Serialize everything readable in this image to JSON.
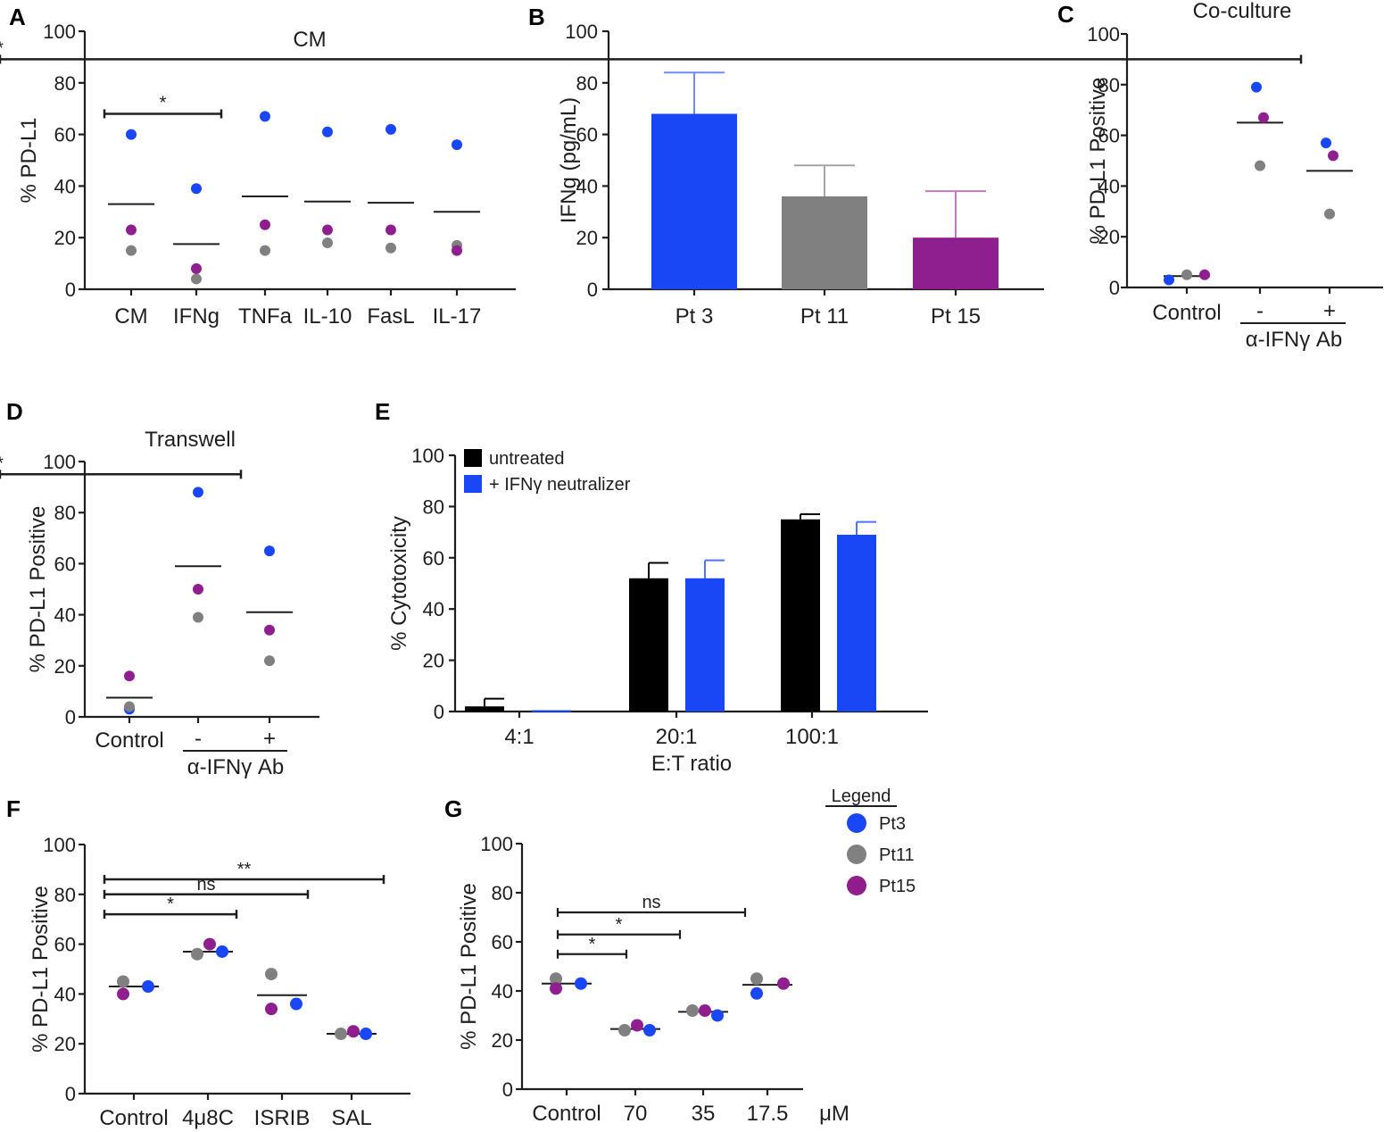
{
  "colors": {
    "pt3": "#1a47f5",
    "pt11": "#808080",
    "pt15": "#8f1e8f",
    "black": "#000000"
  },
  "legend": {
    "title": "Legend",
    "entries": [
      {
        "label": "Pt3",
        "color": "#1a47f5"
      },
      {
        "label": "Pt11",
        "color": "#808080"
      },
      {
        "label": "Pt15",
        "color": "#8f1e8f"
      }
    ]
  },
  "chart_data": [
    {
      "panel": "A",
      "type": "scatter",
      "title": "CM",
      "xlabel": "",
      "ylabel": "% PD-L1",
      "ylim": [
        0,
        100
      ],
      "yticks": [
        "0",
        "20",
        "40",
        "60",
        "80",
        "100"
      ],
      "categories": [
        "CM",
        "IFNg",
        "TNFa",
        "IL-10",
        "FasL",
        "IL-17"
      ],
      "series": [
        {
          "name": "Pt3",
          "values": [
            60,
            39,
            67,
            61,
            62,
            56
          ]
        },
        {
          "name": "Pt11",
          "values": [
            15,
            4,
            15,
            18,
            16,
            17
          ]
        },
        {
          "name": "Pt15",
          "values": [
            23,
            8,
            25,
            23,
            23,
            15
          ]
        }
      ],
      "means": [
        33,
        17.5,
        36,
        34,
        33.5,
        30
      ],
      "significance": [
        {
          "label": "*",
          "from": "CM",
          "to": "IFNg"
        }
      ]
    },
    {
      "panel": "B",
      "type": "bar",
      "title": "",
      "xlabel": "",
      "ylabel": "IFNg (pg/mL)",
      "ylim": [
        0,
        100
      ],
      "yticks": [
        "0",
        "20",
        "40",
        "60",
        "80",
        "100"
      ],
      "categories": [
        "Pt 3",
        "Pt 11",
        "Pt 15"
      ],
      "values": [
        68,
        36,
        20
      ],
      "errors": [
        16,
        12,
        18
      ]
    },
    {
      "panel": "C",
      "type": "scatter",
      "title": "Co-culture",
      "xlabel": "α-IFNγ Ab",
      "ylabel": "% PD-L1 Positive",
      "ylim": [
        0,
        100
      ],
      "yticks": [
        "0",
        "20",
        "40",
        "60",
        "80",
        "100"
      ],
      "categories": [
        "Control",
        "-",
        "+"
      ],
      "series": [
        {
          "name": "Pt3",
          "values": [
            3,
            79,
            57
          ]
        },
        {
          "name": "Pt11",
          "values": [
            5,
            48,
            29
          ]
        },
        {
          "name": "Pt15",
          "values": [
            5,
            67,
            52
          ]
        }
      ],
      "means": [
        4.5,
        65,
        46
      ],
      "significance": [
        {
          "label": "*",
          "from": "-",
          "to": "+"
        }
      ]
    },
    {
      "panel": "D",
      "type": "scatter",
      "title": "Transwell",
      "xlabel": "α-IFNγ Ab",
      "ylabel": "% PD-L1 Positive",
      "ylim": [
        0,
        100
      ],
      "yticks": [
        "0",
        "20",
        "40",
        "60",
        "80",
        "100"
      ],
      "categories": [
        "Control",
        "-",
        "+"
      ],
      "series": [
        {
          "name": "Pt3",
          "values": [
            3,
            88,
            65
          ]
        },
        {
          "name": "Pt11",
          "values": [
            4,
            39,
            22
          ]
        },
        {
          "name": "Pt15",
          "values": [
            16,
            50,
            34
          ]
        }
      ],
      "means": [
        7.5,
        59,
        41
      ],
      "significance": [
        {
          "label": "*",
          "from": "-",
          "to": "+"
        }
      ]
    },
    {
      "panel": "E",
      "type": "bar",
      "title": "",
      "xlabel": "E:T ratio",
      "ylabel": "% Cytotoxicity",
      "ylim": [
        0,
        100
      ],
      "yticks": [
        "0",
        "20",
        "40",
        "60",
        "80",
        "100"
      ],
      "categories": [
        "4:1",
        "20:1",
        "100:1"
      ],
      "series": [
        {
          "name": "untreated",
          "values": [
            2,
            52,
            75
          ],
          "errors": [
            3,
            6,
            2
          ]
        },
        {
          "name": "+ IFNγ neutralizer",
          "values": [
            0.5,
            52,
            69
          ],
          "errors": [
            0,
            7,
            5
          ]
        }
      ]
    },
    {
      "panel": "F",
      "type": "scatter",
      "title": "",
      "xlabel": "",
      "ylabel": "% PD-L1 Positive",
      "ylim": [
        0,
        100
      ],
      "yticks": [
        "0",
        "20",
        "40",
        "60",
        "80",
        "100"
      ],
      "categories": [
        "Control",
        "4μ8C",
        "ISRIB",
        "SAL"
      ],
      "series": [
        {
          "name": "Pt3",
          "values": [
            43,
            57,
            36,
            24
          ]
        },
        {
          "name": "Pt11",
          "values": [
            45,
            56,
            48,
            24
          ]
        },
        {
          "name": "Pt15",
          "values": [
            40,
            60,
            34,
            25
          ]
        }
      ],
      "means": [
        43,
        57,
        39.5,
        24
      ],
      "significance": [
        {
          "label": "*",
          "from": "Control",
          "to": "4μ8C"
        },
        {
          "label": "ns",
          "from": "Control",
          "to": "ISRIB"
        },
        {
          "label": "**",
          "from": "Control",
          "to": "SAL"
        }
      ]
    },
    {
      "panel": "G",
      "type": "scatter",
      "title": "",
      "xlabel": "μM",
      "ylabel": "% PD-L1 Positive",
      "ylim": [
        0,
        100
      ],
      "yticks": [
        "0",
        "20",
        "40",
        "60",
        "80",
        "100"
      ],
      "categories": [
        "Control",
        "70",
        "35",
        "17.5"
      ],
      "series": [
        {
          "name": "Pt3",
          "values": [
            43,
            24,
            30,
            39
          ]
        },
        {
          "name": "Pt11",
          "values": [
            45,
            24,
            32,
            45
          ]
        },
        {
          "name": "Pt15",
          "values": [
            41,
            26,
            32,
            43
          ]
        }
      ],
      "means": [
        43,
        24.5,
        31.5,
        42.5
      ],
      "significance": [
        {
          "label": "*",
          "from": "Control",
          "to": "70"
        },
        {
          "label": "*",
          "from": "Control",
          "to": "35"
        },
        {
          "label": "ns",
          "from": "Control",
          "to": "17.5"
        }
      ]
    }
  ]
}
